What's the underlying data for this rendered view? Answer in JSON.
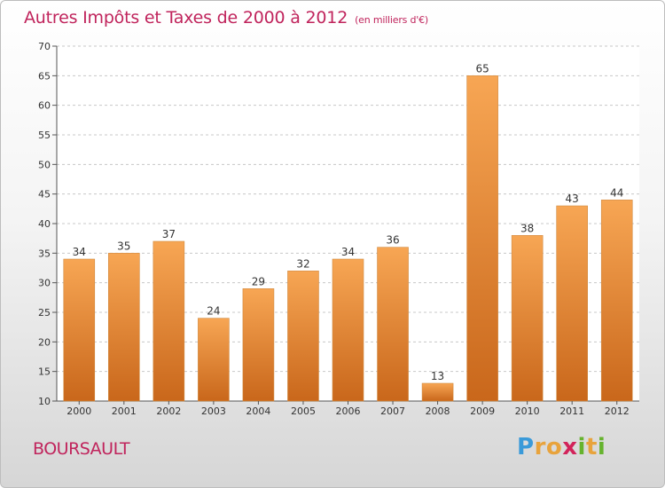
{
  "header": {
    "title": "Autres Impôts et Taxes de 2000 à 2012",
    "unit": "(en milliers d'€)"
  },
  "footer": {
    "commune": "BOURSAULT",
    "logo": {
      "letters": [
        "P",
        "r",
        "o",
        "x",
        "i",
        "t",
        "i"
      ],
      "colors": [
        "#3a9ad9",
        "#e8a33c",
        "#e8a33c",
        "#d2235a",
        "#66b32e",
        "#e8a33c",
        "#66b32e"
      ]
    }
  },
  "colors": {
    "bar_top": "#f7a654",
    "bar_bottom": "#c9671b",
    "grid": "#c8c8c8",
    "plot_bg": "#ffffff",
    "title": "#c0245c"
  },
  "chart_data": {
    "type": "bar",
    "title": "Autres Impôts et Taxes de 2000 à 2012",
    "subtitle": "(en milliers d'€)",
    "categories": [
      "2000",
      "2001",
      "2002",
      "2003",
      "2004",
      "2005",
      "2006",
      "2007",
      "2008",
      "2009",
      "2010",
      "2011",
      "2012"
    ],
    "values": [
      34,
      35,
      37,
      24,
      29,
      32,
      34,
      36,
      13,
      65,
      38,
      43,
      44
    ],
    "ylim": [
      10,
      70
    ],
    "yticks": [
      10,
      15,
      20,
      25,
      30,
      35,
      40,
      45,
      50,
      55,
      60,
      65,
      70
    ],
    "grid": "horizontal dashed",
    "xlabel": "",
    "ylabel": ""
  }
}
